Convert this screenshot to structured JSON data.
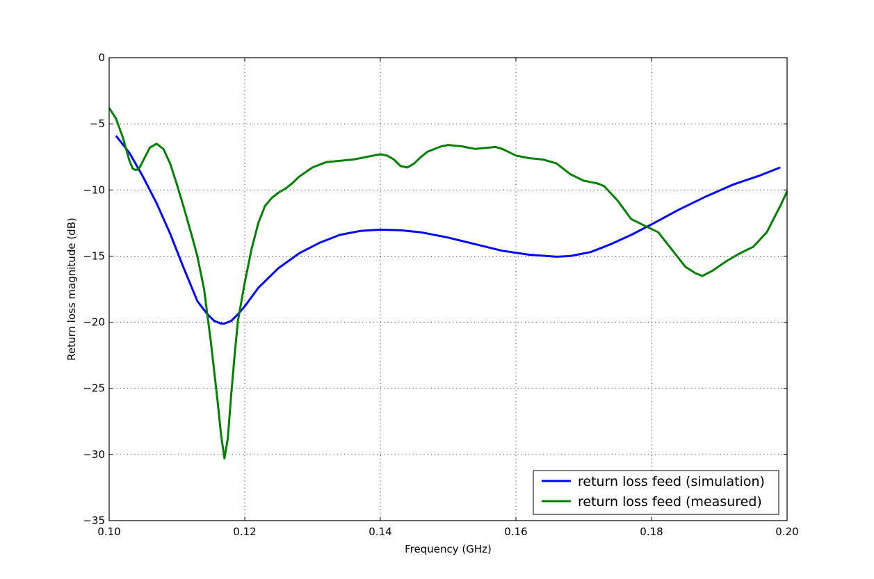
{
  "chart_data": {
    "type": "line",
    "title": "",
    "xlabel": "Frequency (GHz)",
    "ylabel": "Return loss magnitude (dB)",
    "xlim": [
      0.1,
      0.2
    ],
    "ylim": [
      -35,
      0
    ],
    "x_ticks": [
      0.1,
      0.12,
      0.14,
      0.16,
      0.18,
      0.2
    ],
    "x_tick_labels": [
      "0.10",
      "0.12",
      "0.14",
      "0.16",
      "0.18",
      "0.20"
    ],
    "y_ticks": [
      0,
      -5,
      -10,
      -15,
      -20,
      -25,
      -30,
      -35
    ],
    "y_tick_labels": [
      "0",
      "−5",
      "−10",
      "−15",
      "−20",
      "−25",
      "−30",
      "−35"
    ],
    "grid": true,
    "legend_position": "lower-right",
    "series": [
      {
        "name": "return loss feed (simulation)",
        "color": "#0000ff",
        "x": [
          0.101,
          0.103,
          0.105,
          0.107,
          0.109,
          0.111,
          0.113,
          0.1145,
          0.1155,
          0.1165,
          0.117,
          0.118,
          0.119,
          0.12,
          0.122,
          0.125,
          0.128,
          0.131,
          0.134,
          0.137,
          0.14,
          0.143,
          0.146,
          0.15,
          0.154,
          0.158,
          0.162,
          0.166,
          0.168,
          0.171,
          0.174,
          0.177,
          0.18,
          0.184,
          0.188,
          0.192,
          0.196,
          0.199
        ],
        "y": [
          -5.9,
          -7.2,
          -9.0,
          -11.0,
          -13.3,
          -15.9,
          -18.4,
          -19.4,
          -19.9,
          -20.1,
          -20.1,
          -19.9,
          -19.4,
          -18.8,
          -17.4,
          -15.9,
          -14.8,
          -14.0,
          -13.4,
          -13.1,
          -13.0,
          -13.05,
          -13.2,
          -13.6,
          -14.1,
          -14.6,
          -14.9,
          -15.05,
          -15.0,
          -14.7,
          -14.1,
          -13.4,
          -12.6,
          -11.5,
          -10.5,
          -9.6,
          -8.9,
          -8.3
        ]
      },
      {
        "name": "return loss feed (measured)",
        "color": "#008000",
        "x": [
          0.1,
          0.101,
          0.102,
          0.103,
          0.1035,
          0.104,
          0.1045,
          0.105,
          0.106,
          0.107,
          0.108,
          0.109,
          0.11,
          0.111,
          0.112,
          0.113,
          0.114,
          0.115,
          0.116,
          0.1165,
          0.117,
          0.1175,
          0.118,
          0.1185,
          0.119,
          0.12,
          0.121,
          0.122,
          0.123,
          0.124,
          0.125,
          0.126,
          0.127,
          0.128,
          0.13,
          0.132,
          0.134,
          0.136,
          0.138,
          0.14,
          0.141,
          0.142,
          0.143,
          0.144,
          0.145,
          0.146,
          0.147,
          0.149,
          0.15,
          0.152,
          0.154,
          0.156,
          0.157,
          0.158,
          0.16,
          0.162,
          0.164,
          0.166,
          0.168,
          0.17,
          0.172,
          0.173,
          0.175,
          0.177,
          0.179,
          0.181,
          0.183,
          0.185,
          0.1865,
          0.1875,
          0.189,
          0.191,
          0.193,
          0.195,
          0.197,
          0.198,
          0.199,
          0.2
        ],
        "y": [
          -3.8,
          -4.6,
          -6.0,
          -7.8,
          -8.4,
          -8.5,
          -8.3,
          -7.8,
          -6.8,
          -6.5,
          -6.9,
          -8.0,
          -9.6,
          -11.3,
          -13.1,
          -15.0,
          -17.5,
          -21.5,
          -26.0,
          -28.5,
          -30.3,
          -28.8,
          -25.5,
          -22.5,
          -19.9,
          -17.0,
          -14.5,
          -12.5,
          -11.2,
          -10.6,
          -10.2,
          -9.9,
          -9.5,
          -9.0,
          -8.3,
          -7.9,
          -7.8,
          -7.7,
          -7.5,
          -7.3,
          -7.4,
          -7.7,
          -8.2,
          -8.3,
          -8.0,
          -7.5,
          -7.1,
          -6.7,
          -6.6,
          -6.7,
          -6.9,
          -6.8,
          -6.75,
          -6.9,
          -7.4,
          -7.6,
          -7.7,
          -8.0,
          -8.8,
          -9.3,
          -9.5,
          -9.7,
          -10.8,
          -12.2,
          -12.7,
          -13.2,
          -14.5,
          -15.8,
          -16.3,
          -16.5,
          -16.1,
          -15.4,
          -14.8,
          -14.3,
          -13.2,
          -12.2,
          -11.2,
          -10.1
        ]
      }
    ]
  }
}
